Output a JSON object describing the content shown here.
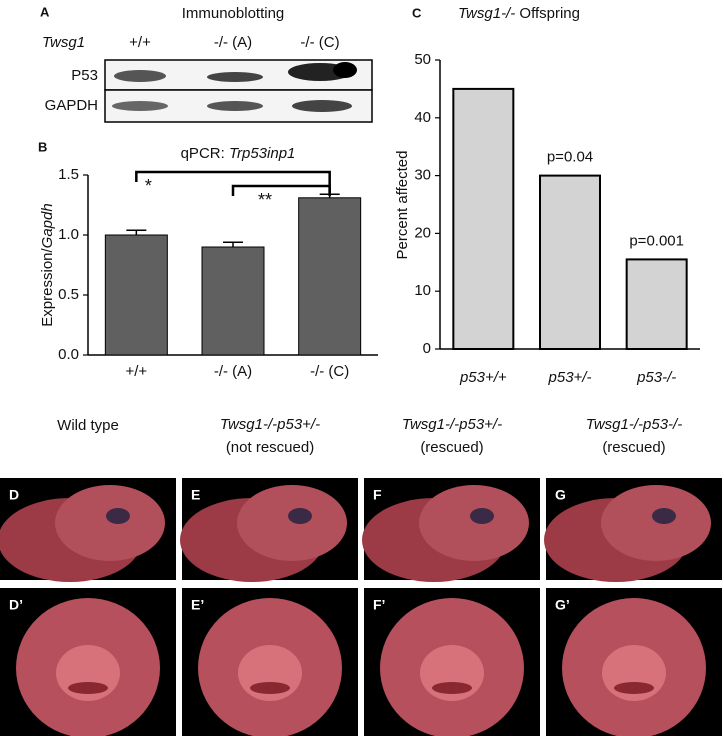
{
  "panel_a": {
    "letter": "A",
    "title": "Immunoblotting",
    "gene": "Twsg1",
    "genotypes": [
      "+/+",
      "-/- (A)",
      "-/- (C)"
    ],
    "rows": [
      "P53",
      "GAPDH"
    ]
  },
  "chart_data": [
    {
      "type": "bar",
      "letter": "B",
      "title": [
        "qPCR: ",
        "Trp53inp1"
      ],
      "ylabel": [
        "Expression/",
        "Gapdh"
      ],
      "categories": [
        "+/+",
        "-/- (A)",
        "-/- (C)"
      ],
      "values": [
        1.0,
        0.9,
        1.31
      ],
      "errors": [
        0.04,
        0.04,
        0.03
      ],
      "color": "#606060",
      "ylim": [
        0,
        1.5
      ],
      "yticks": [
        {
          "value": 0,
          "label": "0.0"
        },
        {
          "value": 0.5,
          "label": "0.5"
        },
        {
          "value": 1,
          "label": "1.0"
        },
        {
          "value": 1.5,
          "label": "1.5"
        }
      ],
      "significance": [
        {
          "from": 0,
          "to": 2,
          "label": "*"
        },
        {
          "from": 1,
          "to": 2,
          "label": "**"
        }
      ]
    },
    {
      "type": "bar",
      "letter": "C",
      "title": [
        "Twsg1-/-",
        " Offspring"
      ],
      "ylabel": [
        "Percent affected"
      ],
      "categories": [
        "p53+/+",
        "p53+/-",
        "p53-/-"
      ],
      "values": [
        45,
        30,
        15.5
      ],
      "annotations": [
        null,
        "p=0.04",
        "p=0.001"
      ],
      "color": "#d3d3d3",
      "ylim": [
        0,
        50
      ],
      "yticks": [
        0,
        10,
        20,
        30,
        40,
        50
      ]
    }
  ],
  "photos": {
    "headers": [
      [
        "Wild type"
      ],
      [
        "Twsg1-/-p53+/-",
        "(not rescued)"
      ],
      [
        "Twsg1-/-p53+/-",
        "(rescued)"
      ],
      [
        "Twsg1-/-p53-/-",
        "(rescued)"
      ]
    ],
    "top_letters": [
      "D",
      "E",
      "F",
      "G"
    ],
    "bottom_letters": [
      "D’",
      "E’",
      "F’",
      "G’"
    ]
  }
}
